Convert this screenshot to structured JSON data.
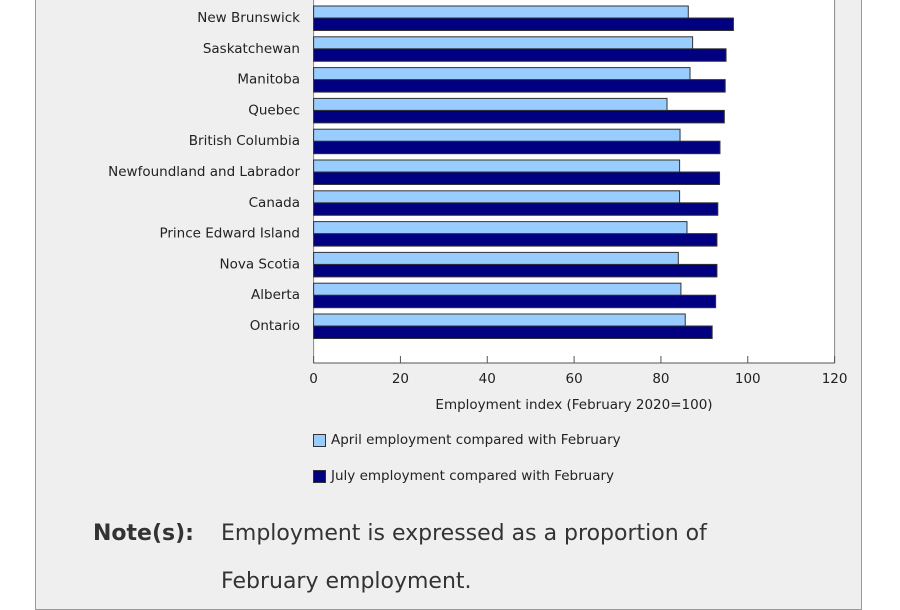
{
  "chart_data": {
    "type": "bar",
    "orientation": "horizontal",
    "categories": [
      "New Brunswick",
      "Saskatchewan",
      "Manitoba",
      "Quebec",
      "British Columbia",
      "Newfoundland and Labrador",
      "Canada",
      "Prince Edward Island",
      "Nova Scotia",
      "Alberta",
      "Ontario"
    ],
    "series": [
      {
        "name": "April employment compared with February",
        "color": "#99ccff",
        "values": [
          86.3,
          87.3,
          86.7,
          81.4,
          84.4,
          84.3,
          84.3,
          86.0,
          84.0,
          84.6,
          85.6
        ]
      },
      {
        "name": "July employment compared with February",
        "color": "#000080",
        "values": [
          96.7,
          95.0,
          94.8,
          94.6,
          93.6,
          93.5,
          93.1,
          92.9,
          92.9,
          92.6,
          91.8
        ]
      }
    ],
    "xlabel": "Employment index (February 2020=100)",
    "xlim": [
      0,
      120
    ],
    "xticks": [
      "0",
      "20",
      "40",
      "60",
      "80",
      "100",
      "120"
    ],
    "grid": false,
    "legend": "bottom"
  },
  "note": {
    "label": "Note(s):",
    "text": "Employment is expressed as a proportion of February employment."
  }
}
